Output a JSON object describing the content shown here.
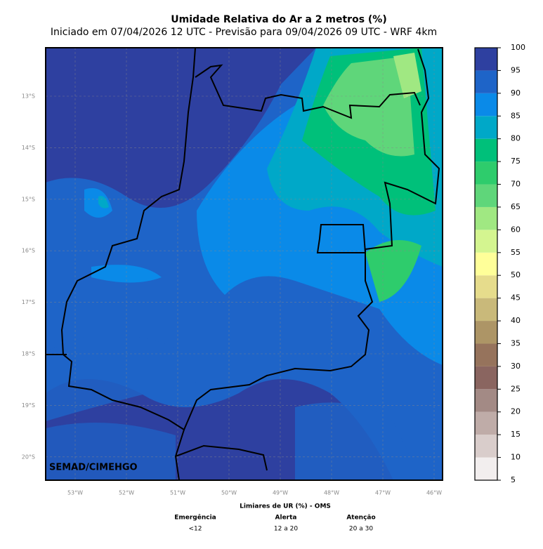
{
  "header": {
    "title": "Umidade Relativa do Ar a 2 metros (%)",
    "subtitle": "Iniciado em 07/04/2026 12 UTC - Previsão para 09/04/2026 09 UTC - WRF 4km"
  },
  "map": {
    "credit": "SEMAD/CIMEHGO",
    "lat_labels": [
      "13°S",
      "14°S",
      "15°S",
      "16°S",
      "17°S",
      "18°S",
      "19°S",
      "20°S"
    ],
    "lon_labels": [
      "53°W",
      "52°W",
      "51°W",
      "50°W",
      "49°W",
      "48°W",
      "47°W",
      "46°W"
    ]
  },
  "colorbar": {
    "ticks": [
      5,
      10,
      15,
      20,
      25,
      30,
      35,
      40,
      45,
      50,
      55,
      60,
      65,
      70,
      75,
      80,
      85,
      90,
      95,
      100
    ],
    "colors": [
      "#f2eeee",
      "#d9cdcb",
      "#bfaca8",
      "#a38a85",
      "#8a6560",
      "#96735c",
      "#ad9566",
      "#c9b97a",
      "#e6dc8c",
      "#ffff99",
      "#d4f590",
      "#a0e882",
      "#5fd67a",
      "#2ecc6c",
      "#00c07a",
      "#00a8c8",
      "#0a8ae8",
      "#1e64c8",
      "#2e40a0"
    ]
  },
  "footer": {
    "title": "Limiares de UR (%) - OMS",
    "levels": [
      {
        "name": "Emergência",
        "range": "<12"
      },
      {
        "name": "Alerta",
        "range": "12 a 20"
      },
      {
        "name": "Atenção",
        "range": "20 a 30"
      }
    ]
  }
}
